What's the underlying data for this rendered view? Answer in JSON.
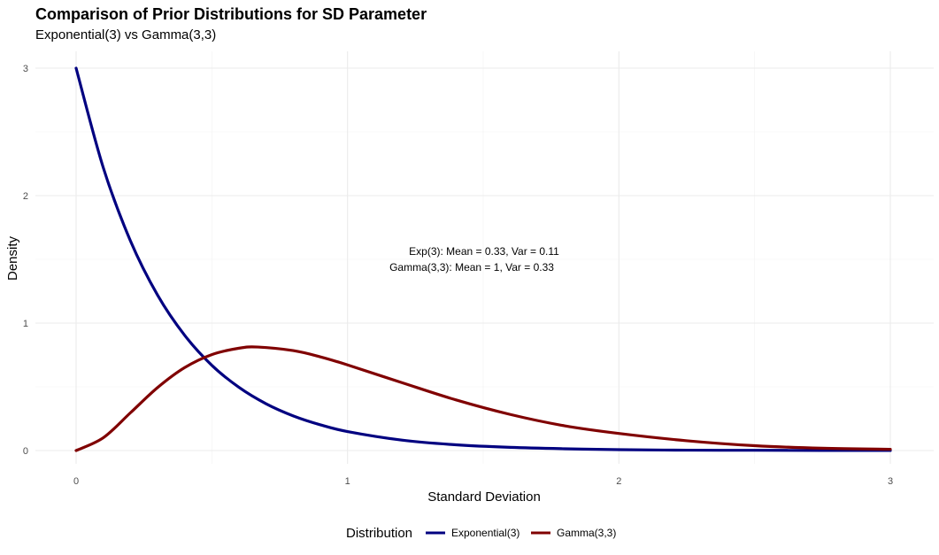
{
  "chart_data": {
    "type": "line",
    "title": "Comparison of Prior Distributions for SD Parameter",
    "subtitle": "Exponential(3) vs Gamma(3,3)",
    "xlabel": "Standard Deviation",
    "ylabel": "Density",
    "xlim": [
      0,
      3
    ],
    "ylim": [
      0,
      3
    ],
    "x_ticks": [
      0,
      1,
      2,
      3
    ],
    "y_ticks": [
      0,
      1,
      2,
      3
    ],
    "grid": true,
    "legend_position": "bottom",
    "legend_title": "Distribution",
    "series": [
      {
        "name": "Exponential(3)",
        "color": "#000080",
        "x": [
          0,
          0.1,
          0.2,
          0.3,
          0.4,
          0.5,
          0.6,
          0.7,
          0.8,
          0.9,
          1.0,
          1.2,
          1.4,
          1.6,
          1.8,
          2.0,
          2.25,
          2.5,
          2.75,
          3.0
        ],
        "y": [
          3.0,
          2.22,
          1.646,
          1.22,
          0.904,
          0.669,
          0.496,
          0.367,
          0.272,
          0.202,
          0.149,
          0.082,
          0.045,
          0.025,
          0.014,
          0.007,
          0.003,
          0.002,
          0.001,
          0.0004
        ]
      },
      {
        "name": "Gamma(3,3)",
        "color": "#800000",
        "x": [
          0,
          0.1,
          0.2,
          0.3,
          0.4,
          0.5,
          0.6,
          0.67,
          0.8,
          0.9,
          1.0,
          1.2,
          1.4,
          1.6,
          1.8,
          2.0,
          2.25,
          2.5,
          2.75,
          3.0
        ],
        "y": [
          0,
          0.1,
          0.296,
          0.494,
          0.651,
          0.753,
          0.803,
          0.812,
          0.784,
          0.735,
          0.672,
          0.533,
          0.397,
          0.283,
          0.194,
          0.134,
          0.077,
          0.038,
          0.018,
          0.01
        ]
      }
    ],
    "annotations": [
      "Exp(3): Mean = 0.33, Var = 0.11",
      "Gamma(3,3): Mean = 1, Var = 0.33"
    ]
  }
}
